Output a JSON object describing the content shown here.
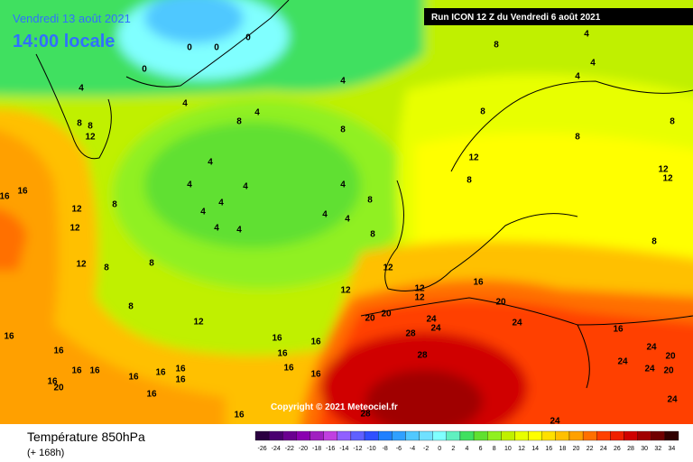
{
  "header": {
    "date": "Vendredi 13 août 2021",
    "time": "14:00 locale",
    "run": "Run ICON 12 Z du Vendredi 6 août 2021"
  },
  "copyright": "Copyright © 2021 Meteociel.fr",
  "footer": {
    "title": "Température 850hPa",
    "subtitle": "(+ 168h)"
  },
  "colorbar": {
    "labels": [
      -26,
      -24,
      -22,
      -20,
      -18,
      -16,
      -14,
      -12,
      -10,
      -8,
      -6,
      -4,
      -2,
      0,
      2,
      4,
      6,
      8,
      10,
      12,
      14,
      16,
      18,
      20,
      22,
      24,
      26,
      28,
      30,
      32,
      34
    ],
    "colors": [
      "#2a0040",
      "#4a0070",
      "#6a0090",
      "#8a00b0",
      "#a020c0",
      "#c040e0",
      "#9060ff",
      "#6060ff",
      "#3050ff",
      "#2080ff",
      "#30a0ff",
      "#50c8ff",
      "#70e0ff",
      "#80ffff",
      "#60f0c0",
      "#40e060",
      "#60e030",
      "#90f020",
      "#c0f000",
      "#e8ff00",
      "#ffff00",
      "#ffe000",
      "#ffc000",
      "#ffa000",
      "#ff7000",
      "#ff4000",
      "#f02000",
      "#d00000",
      "#a00000",
      "#700000",
      "#300000"
    ]
  },
  "contour_labels": [
    0,
    0,
    0,
    0,
    4,
    4,
    4,
    4,
    8,
    8,
    8,
    12,
    8,
    8,
    4,
    4,
    4,
    8,
    4,
    4,
    4,
    4,
    4,
    4,
    4,
    4,
    4,
    8,
    4,
    8,
    12,
    8,
    8,
    8,
    12,
    12,
    8,
    8,
    12,
    12,
    12,
    8,
    8,
    8,
    12,
    12,
    12,
    12,
    12,
    16,
    20,
    20,
    20,
    24,
    24,
    24,
    28,
    28,
    16,
    24,
    20,
    24,
    24,
    20,
    24,
    24,
    28,
    16,
    16,
    16,
    16,
    16,
    16,
    16,
    16,
    16,
    20,
    16,
    16,
    16,
    16,
    16,
    16,
    16,
    16,
    16
  ]
}
